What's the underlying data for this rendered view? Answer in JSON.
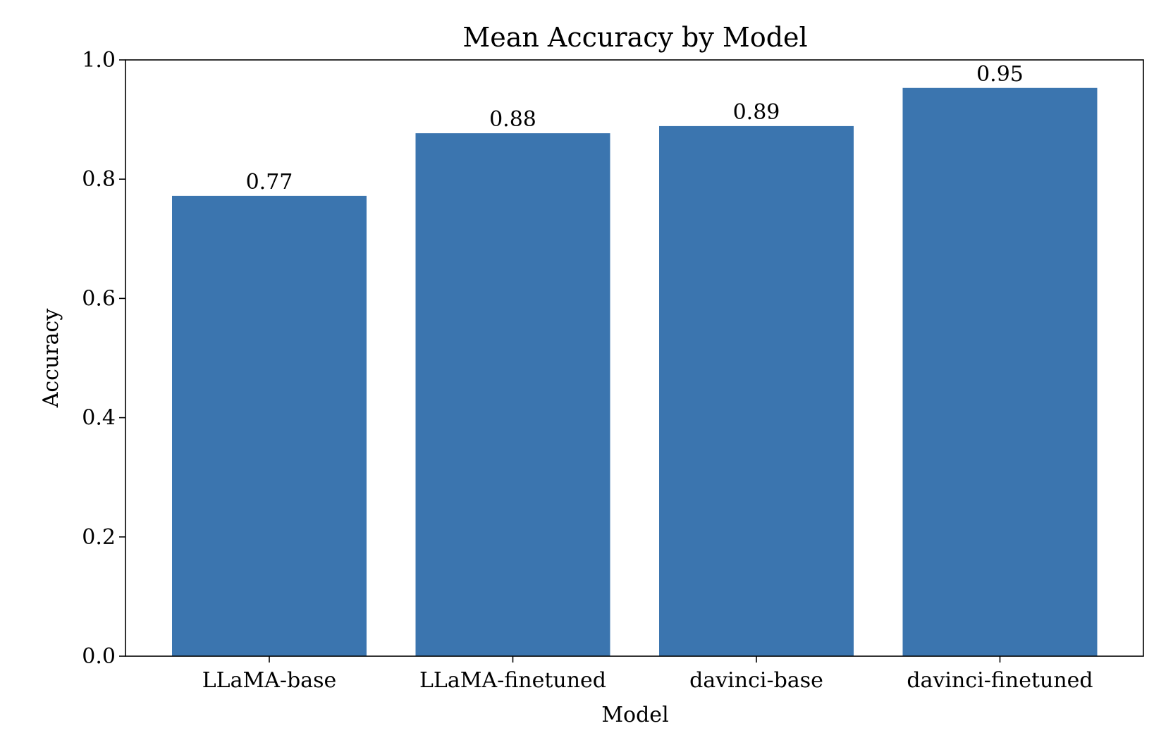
{
  "chart_data": {
    "type": "bar",
    "title": "Mean Accuracy by Model",
    "xlabel": "Model",
    "ylabel": "Accuracy",
    "categories": [
      "LLaMA-base",
      "LLaMA-finetuned",
      "davinci-base",
      "davinci-finetuned"
    ],
    "values": [
      0.772,
      0.877,
      0.889,
      0.953
    ],
    "data_labels": [
      "0.77",
      "0.88",
      "0.89",
      "0.95"
    ],
    "ylim": [
      0,
      1.0
    ],
    "yticks": [
      0.0,
      0.2,
      0.4,
      0.6,
      0.8,
      1.0
    ],
    "ytick_labels": [
      "0.0",
      "0.2",
      "0.4",
      "0.6",
      "0.8",
      "1.0"
    ],
    "grid": false,
    "bar_color": "#3b75af"
  }
}
